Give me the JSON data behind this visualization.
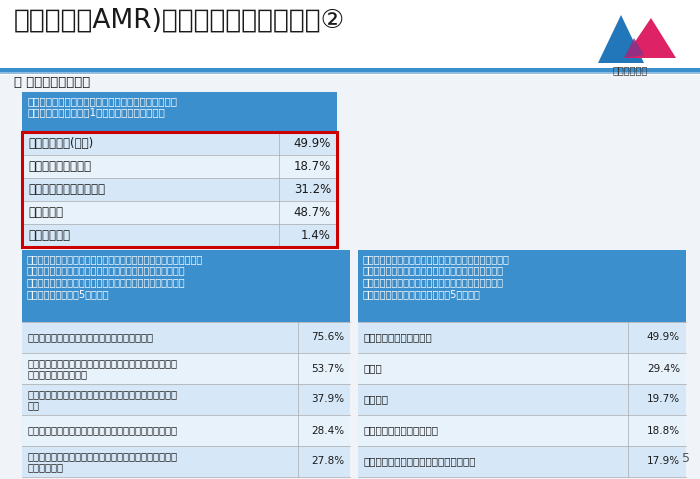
{
  "title": "薬剤耐性（AMR)に関する世論調査結果②",
  "section_header": "〇 薬剤耐性について",
  "bg_color": "#f0f4f8",
  "top_bg_color": "#ffffff",
  "blue_header_color": "#3b8fcd",
  "light_blue_row_a": "#d6e8f7",
  "light_blue_row_b": "#e8f2fb",
  "red_border_color": "#cc0000",
  "page_number": "5",
  "top_question_header_line1": "問　あなたは「薬剤耐性」についてどの程度知ってい",
  "top_question_header_line2": "　ますか。この中から1つだけお答えください。",
  "top_table": {
    "rows": [
      {
        "label": "・知っている(小計)",
        "value": "49.9%",
        "bold": true,
        "indent": 0
      },
      {
        "label": "　・よく知っている",
        "value": "18.7%",
        "bold": false,
        "indent": 1
      },
      {
        "label": "　・言葉だけ知っている",
        "value": "31.2%",
        "bold": false,
        "indent": 1
      },
      {
        "label": "・知らない",
        "value": "48.7%",
        "bold": false,
        "indent": 0
      },
      {
        "label": "・わからない",
        "value": "1.4%",
        "bold": false,
        "indent": 0
      }
    ]
  },
  "left_question_lines": [
    "更問　（「よく知っている」、「言葉だけ知っている」と答えた方",
    "　に）あなたは、「薬剤耐性」について、どのようなことを",
    "　知っていますか。この中からいくつでもあげてください。",
    "　（複数回答、上位5項目。）"
  ],
  "left_table": {
    "rows": [
      {
        "label": "・感染症を起こす菌に抗生物質が効かなくなる",
        "value": "75.6%"
      },
      {
        "label": "・抗生物質を正しく飲まないと、薬剤耐性菌が体の中で\n　増えるおそれがある",
        "value": "53.7%"
      },
      {
        "label": "・日本だけでなく、世界中で薬剤耐性菌が見つかってい\n　る",
        "value": "37.9%"
      },
      {
        "label": "・健康な人でも、薬剤耐性菌を持っている可能性がある",
        "value": "28.4%"
      },
      {
        "label": "・薬剤耐性菌は、他の菌と同様に、人から人に感染する\n　ことがある",
        "value": "27.8%"
      }
    ]
  },
  "right_question_lines": [
    "更問　（よく知っている」「言葉だけ知っている」と答",
    "　えた方に）、あなたは、「薬剤耐性」についてどこ",
    "　から情報を得ましたか。この中からいくつでもあげ",
    "　てください。（複数回答、上位5項目。）"
  ],
  "right_table": {
    "rows": [
      {
        "label": "・テレビ・ラジオ・新聞",
        "value": "49.9%"
      },
      {
        "label": "・医師",
        "value": "29.4%"
      },
      {
        "label": "・薬剤師",
        "value": "19.7%"
      },
      {
        "label": "・書籍や雑誌などの出版物",
        "value": "18.8%"
      },
      {
        "label": "・病院・薬局のポスター、パンフレット",
        "value": "17.9%"
      }
    ]
  }
}
